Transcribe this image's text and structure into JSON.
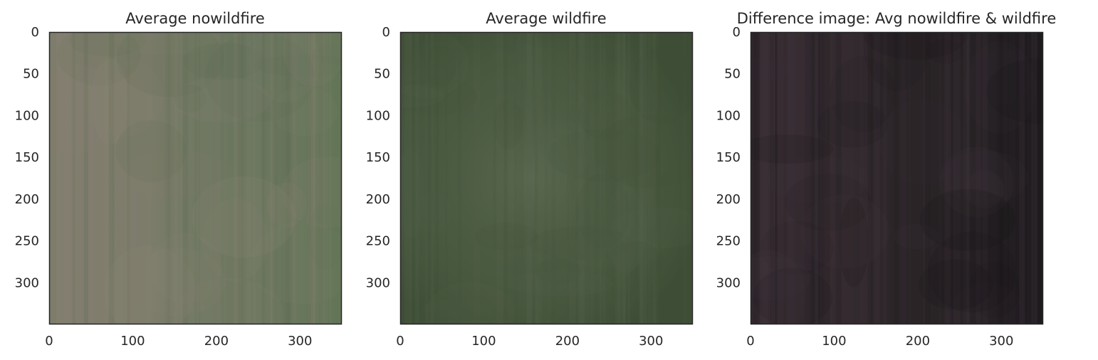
{
  "chart_data": [
    {
      "type": "image",
      "title": "Average nowildfire",
      "xlim": [
        0,
        350
      ],
      "ylim": [
        350,
        0
      ],
      "xticks": [
        0,
        100,
        200,
        300
      ],
      "yticks": [
        0,
        50,
        100,
        150,
        200,
        250,
        300
      ],
      "grid": false,
      "palette": {
        "base": "#6f7862",
        "left_band": "#877f72",
        "right_band": "#5f7554",
        "streak_light": "#8c8676",
        "streak_dark": "#5c6a50"
      }
    },
    {
      "type": "image",
      "title": "Average wildfire",
      "xlim": [
        0,
        350
      ],
      "ylim": [
        350,
        0
      ],
      "xticks": [
        0,
        100,
        200,
        300
      ],
      "yticks": [
        0,
        50,
        100,
        150,
        200,
        250,
        300
      ],
      "grid": false,
      "palette": {
        "base": "#4a5a41",
        "center_glow": "#5d6a52",
        "edge_dark": "#3c4d35",
        "streak_light": "#58654e",
        "streak_dark": "#404f38"
      }
    },
    {
      "type": "image",
      "title": "Difference image: Avg nowildfire & wildfire",
      "xlim": [
        0,
        350
      ],
      "ylim": [
        350,
        0
      ],
      "xticks": [
        0,
        100,
        200,
        300
      ],
      "yticks": [
        0,
        50,
        100,
        150,
        200,
        250,
        300
      ],
      "grid": false,
      "palette": {
        "base": "#2a2427",
        "left_band": "#3b2f36",
        "right_band": "#1b191c",
        "streak_light": "#443841",
        "streak_dark": "#141215"
      }
    }
  ]
}
